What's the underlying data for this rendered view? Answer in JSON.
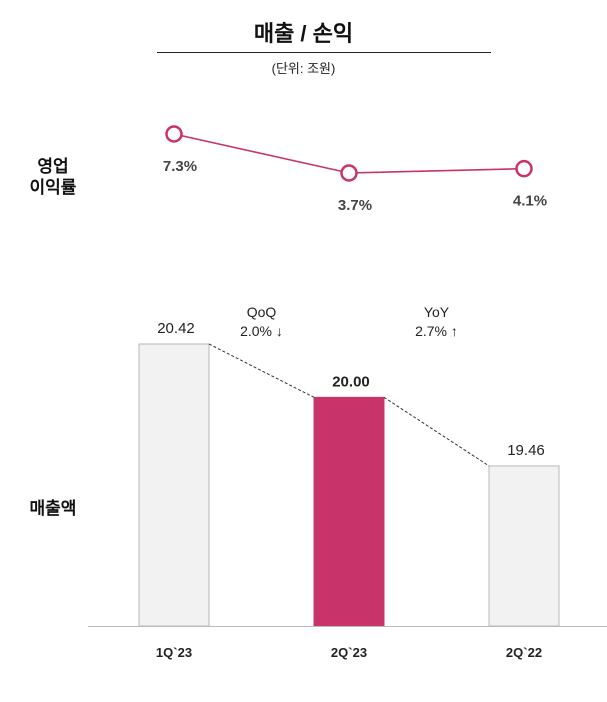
{
  "header": {
    "title": "매출 / 손익",
    "unit": "(단위: 조원)"
  },
  "row_labels": {
    "margin_line1": "영업",
    "margin_line2": "이익률",
    "sales": "매출액"
  },
  "colors": {
    "accent": "#c8336a",
    "bar_default": "#f2f2f2",
    "bar_border": "#b8b8b8",
    "line": "#c8336a"
  },
  "chart_data": [
    {
      "type": "line",
      "categories": [
        "1Q`23",
        "2Q`23",
        "2Q`22"
      ],
      "values": [
        7.3,
        3.7,
        4.1
      ],
      "value_labels": [
        "7.3%",
        "3.7%",
        "4.1%"
      ]
    },
    {
      "type": "bar",
      "categories": [
        "1Q`23",
        "2Q`23",
        "2Q`22"
      ],
      "values": [
        20.42,
        20.0,
        19.46
      ],
      "value_labels": [
        "20.42",
        "20.00",
        "19.46"
      ],
      "highlight_index": 1,
      "annotations": [
        {
          "label": "QoQ",
          "value": "2.0% ↓"
        },
        {
          "label": "YoY",
          "value": "2.7% ↑"
        }
      ]
    }
  ]
}
